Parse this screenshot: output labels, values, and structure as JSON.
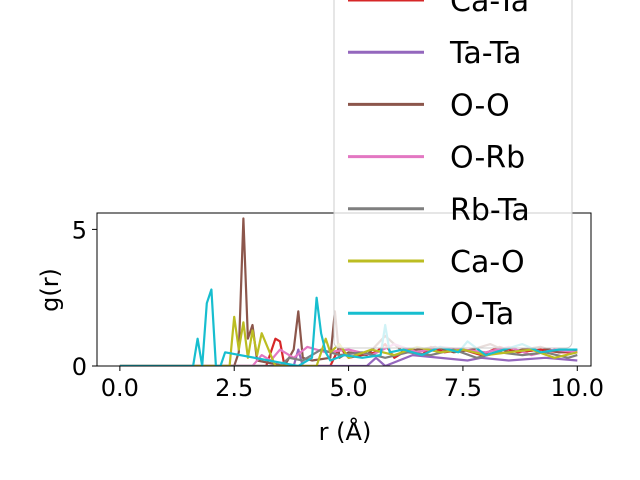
{
  "chart_data": {
    "type": "line",
    "xlabel": "r (Å)",
    "ylabel": "g(r)",
    "xlim": [
      -0.5,
      10.3
    ],
    "ylim": [
      0,
      5.6
    ],
    "xticks": [
      0.0,
      2.5,
      5.0,
      7.5,
      10.0
    ],
    "xtick_labels": [
      "0.0",
      "2.5",
      "5.0",
      "7.5",
      "10.0"
    ],
    "yticks": [
      0,
      5
    ],
    "ytick_labels": [
      "0",
      "5"
    ],
    "grid": false,
    "legend_position": "upper-right, overflowing above the axes",
    "series": [
      {
        "name": "Ca-Ta",
        "color": "#d62728",
        "x": [
          0,
          3.2,
          3.4,
          3.5,
          3.6,
          3.7,
          3.8,
          4.6,
          4.8,
          5.0,
          5.6,
          5.8,
          6.0,
          6.3,
          6.6,
          6.8,
          7.1,
          7.5,
          7.9,
          8.3,
          8.7,
          9.2,
          9.6,
          10.0
        ],
        "y": [
          0,
          0,
          1.0,
          0.9,
          0.0,
          0.0,
          0.0,
          0.0,
          0.7,
          0.3,
          0.5,
          0.8,
          0.3,
          0.6,
          0.4,
          0.7,
          0.5,
          0.6,
          0.4,
          0.7,
          0.5,
          0.6,
          0.5,
          0.5
        ]
      },
      {
        "name": "Ta-Ta",
        "color": "#9467bd",
        "x": [
          0,
          3.8,
          3.9,
          4.0,
          4.3,
          5.4,
          5.6,
          5.8,
          6.4,
          7.6,
          7.9,
          8.5,
          9.3,
          10.0
        ],
        "y": [
          0,
          0,
          0.6,
          0,
          0,
          0,
          0.3,
          0,
          0.4,
          0.2,
          0.3,
          0.2,
          0.3,
          0.2
        ]
      },
      {
        "name": "O-O",
        "color": "#8c564b",
        "x": [
          0,
          2.5,
          2.6,
          2.7,
          2.8,
          2.9,
          3.0,
          3.6,
          3.8,
          3.9,
          4.0,
          4.2,
          4.6,
          4.7,
          4.8,
          5.0,
          5.4,
          5.8,
          6.2,
          6.5,
          6.9,
          7.3,
          7.7,
          8.1,
          8.5,
          8.8,
          9.2,
          9.6,
          10.0
        ],
        "y": [
          0,
          0,
          0.5,
          5.4,
          1.0,
          1.5,
          0.2,
          0.0,
          0.6,
          2.0,
          0.3,
          0.2,
          0.3,
          2.0,
          0.3,
          0.5,
          0.4,
          1.1,
          0.5,
          0.6,
          0.7,
          0.5,
          0.6,
          0.8,
          0.5,
          0.6,
          0.7,
          0.5,
          0.6
        ]
      },
      {
        "name": "O-Rb",
        "color": "#e377c2",
        "x": [
          0,
          2.9,
          3.1,
          3.3,
          3.5,
          3.8,
          4.1,
          4.5,
          5.0,
          5.5,
          6.0,
          6.5,
          7.0,
          7.5,
          8.0,
          8.5,
          9.0,
          9.5,
          10.0
        ],
        "y": [
          0,
          0,
          0.4,
          0.2,
          0.6,
          0.3,
          0.7,
          0.5,
          0.6,
          0.4,
          0.8,
          0.5,
          0.7,
          0.6,
          0.5,
          0.7,
          0.4,
          0.6,
          0.5
        ]
      },
      {
        "name": "Rb-Ta",
        "color": "#7f7f7f",
        "x": [
          0,
          3.5,
          3.7,
          4.0,
          4.4,
          4.8,
          5.3,
          5.8,
          6.3,
          6.8,
          7.3,
          7.8,
          8.3,
          8.8,
          9.3,
          9.8,
          10.0
        ],
        "y": [
          0,
          0,
          0.3,
          0.2,
          0.6,
          0.4,
          0.5,
          0.3,
          0.5,
          0.4,
          0.6,
          0.3,
          0.5,
          0.4,
          0.5,
          0.3,
          0.4
        ]
      },
      {
        "name": "Ca-O",
        "color": "#bcbd22",
        "x": [
          0,
          2.4,
          2.5,
          2.6,
          2.7,
          2.8,
          2.9,
          3.0,
          3.1,
          3.4,
          4.3,
          4.5,
          4.6,
          4.8,
          5.0,
          5.5,
          6.0,
          6.5,
          7.0,
          7.5,
          8.0,
          8.5,
          9.0,
          9.5,
          10.0
        ],
        "y": [
          0,
          0,
          1.8,
          0.6,
          1.6,
          0.3,
          1.3,
          0.4,
          1.2,
          0.0,
          0.0,
          1.0,
          0.5,
          0.8,
          0.3,
          0.6,
          0.4,
          0.7,
          0.5,
          0.6,
          0.4,
          0.5,
          0.6,
          0.3,
          0.5
        ]
      },
      {
        "name": "O-Ta",
        "color": "#17becf",
        "x": [
          0,
          1.6,
          1.7,
          1.8,
          1.9,
          2.0,
          2.1,
          2.2,
          2.3,
          3.9,
          4.2,
          4.3,
          4.4,
          4.5,
          4.6,
          4.9,
          5.3,
          5.7,
          5.8,
          5.9,
          6.2,
          6.6,
          7.0,
          7.4,
          7.6,
          8.0,
          8.4,
          8.8,
          9.2,
          9.6,
          10.0
        ],
        "y": [
          0,
          0,
          1.0,
          0.0,
          2.3,
          2.8,
          0.0,
          0.0,
          0.5,
          0.0,
          0.3,
          2.5,
          1.2,
          0.5,
          0.2,
          0.4,
          0.3,
          0.4,
          1.5,
          0.5,
          0.6,
          0.4,
          0.7,
          0.5,
          0.9,
          0.4,
          0.6,
          0.8,
          0.5,
          0.6,
          0.6
        ]
      }
    ]
  }
}
